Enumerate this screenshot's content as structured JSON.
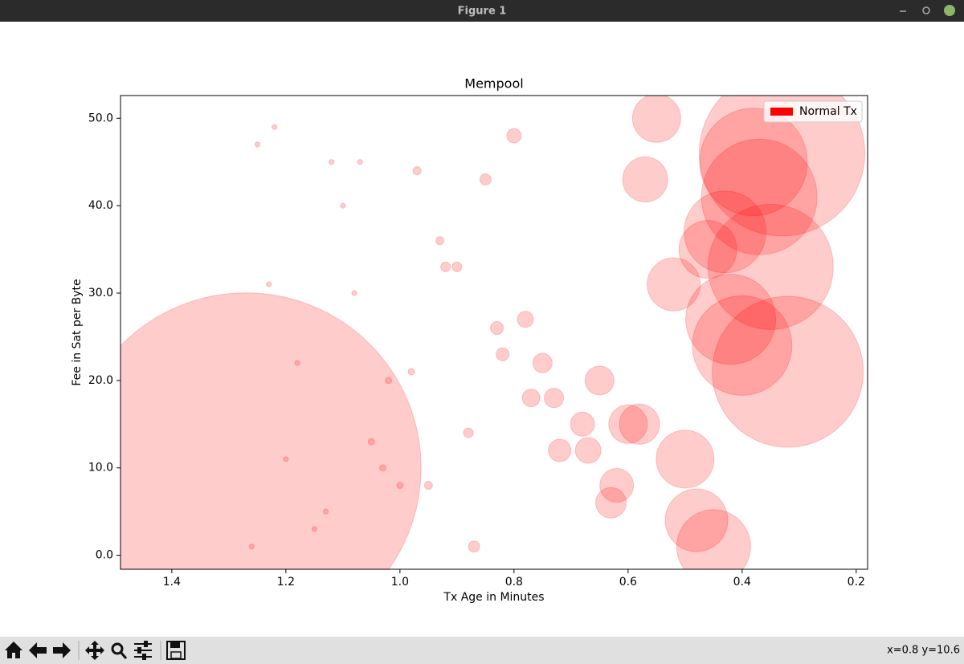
{
  "window": {
    "title": "Figure 1",
    "status": "x=0.8 y=10.6"
  },
  "chart_data": {
    "type": "scatter",
    "title": "Mempool",
    "x_label": "Tx Age in Minutes",
    "y_label": "Fee in Sat per Byte",
    "series": [
      {
        "name": "Normal Tx",
        "color": "#ff0000",
        "alpha": 0.2,
        "x": [
          1.22,
          1.25,
          1.12,
          1.07,
          1.1,
          1.23,
          1.08,
          1.18,
          0.98,
          1.02,
          1.05,
          1.2,
          1.03,
          1.13,
          1.0,
          0.95,
          1.15,
          1.26,
          0.87,
          0.97,
          0.85,
          0.8,
          0.93,
          0.92,
          0.9,
          0.83,
          0.78,
          0.82,
          0.75,
          0.88,
          0.77,
          0.73,
          0.65,
          0.68,
          0.72,
          0.67,
          0.6,
          0.58,
          0.62,
          0.63,
          0.55,
          0.57,
          0.52,
          0.5,
          0.48,
          0.45,
          0.46,
          0.42,
          0.43,
          0.4,
          0.38,
          0.37,
          0.35,
          0.33,
          0.32,
          1.27
        ],
        "values": [
          49,
          47,
          45,
          45,
          40,
          31,
          30,
          22,
          21,
          20,
          13,
          11,
          10,
          5,
          8,
          8,
          3,
          1,
          1,
          44,
          43,
          48,
          36,
          33,
          33,
          26,
          27,
          23,
          22,
          14,
          18,
          18,
          20,
          15,
          12,
          12,
          15,
          15,
          8,
          6,
          50,
          43,
          31,
          11,
          4,
          1,
          35,
          27,
          37,
          24,
          45,
          41,
          33,
          46,
          21,
          10
        ],
        "sizes": [
          20,
          20,
          20,
          20,
          20,
          20,
          20,
          20,
          33,
          33,
          33,
          20,
          33,
          20,
          33,
          52,
          20,
          20,
          100,
          52,
          100,
          168,
          52,
          75,
          75,
          133,
          207,
          133,
          300,
          75,
          250,
          300,
          672,
          467,
          406,
          531,
          1194,
          1296,
          914,
          749,
          1866,
          1626,
          2258,
          2687,
          3154,
          4388,
          2687,
          6503,
          5393,
          7971,
          9308,
          10749,
          12615,
          22000,
          18322,
          98545
        ]
      }
    ],
    "xlim": [
      1.49,
      0.18
    ],
    "xticks": [
      1.4,
      1.2,
      {
        "value": 1.0,
        "label": "1.0"
      },
      0.8,
      0.6,
      0.4,
      0.2
    ],
    "ylim": [
      -1.6,
      52.6
    ],
    "yticks": [
      {
        "value": 0,
        "label": "0.0"
      },
      {
        "value": 10,
        "label": "10.0"
      },
      {
        "value": 20,
        "label": "20.0"
      },
      {
        "value": 30,
        "label": "30.0"
      },
      {
        "value": 40,
        "label": "40.0"
      },
      {
        "value": 50,
        "label": "50.0"
      }
    ],
    "legend": "upper right"
  }
}
